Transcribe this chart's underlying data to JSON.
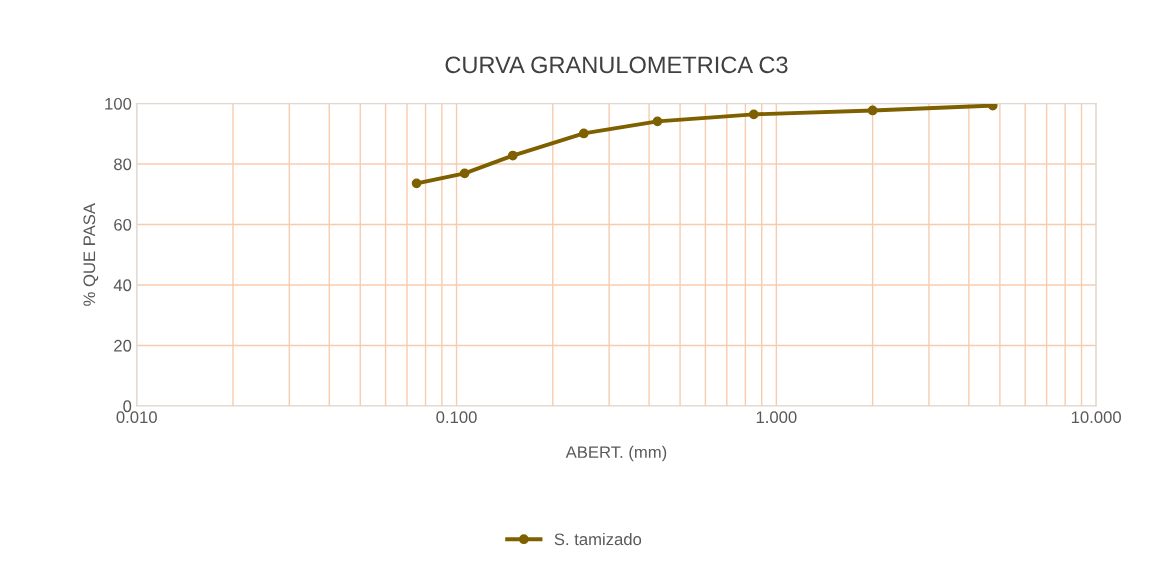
{
  "chart_data": {
    "type": "line",
    "title": "CURVA GRANULOMETRICA C3",
    "xlabel": "ABERT. (mm)",
    "ylabel": "% QUE PASA",
    "log": "x",
    "x": [
      0.075,
      0.106,
      0.15,
      0.25,
      0.425,
      0.85,
      2.0,
      4.75
    ],
    "series": [
      {
        "name": "S. tamizado",
        "color": "#7f6000",
        "values": [
          73.6,
          76.9,
          82.8,
          90.1,
          94.1,
          96.4,
          97.7,
          99.3
        ]
      }
    ],
    "xlim": [
      0.01,
      10
    ],
    "xticks": [
      {
        "value": 0.01,
        "label": "0.010"
      },
      {
        "value": 0.1,
        "label": "0.100"
      },
      {
        "value": 1,
        "label": "1.000"
      },
      {
        "value": 10,
        "label": "10.000"
      }
    ],
    "ylim": [
      0,
      100
    ],
    "yticks": [
      0,
      20,
      40,
      60,
      80,
      100
    ],
    "grid": true,
    "legend": "bottom",
    "marker": "circle",
    "line_style": "solid"
  }
}
